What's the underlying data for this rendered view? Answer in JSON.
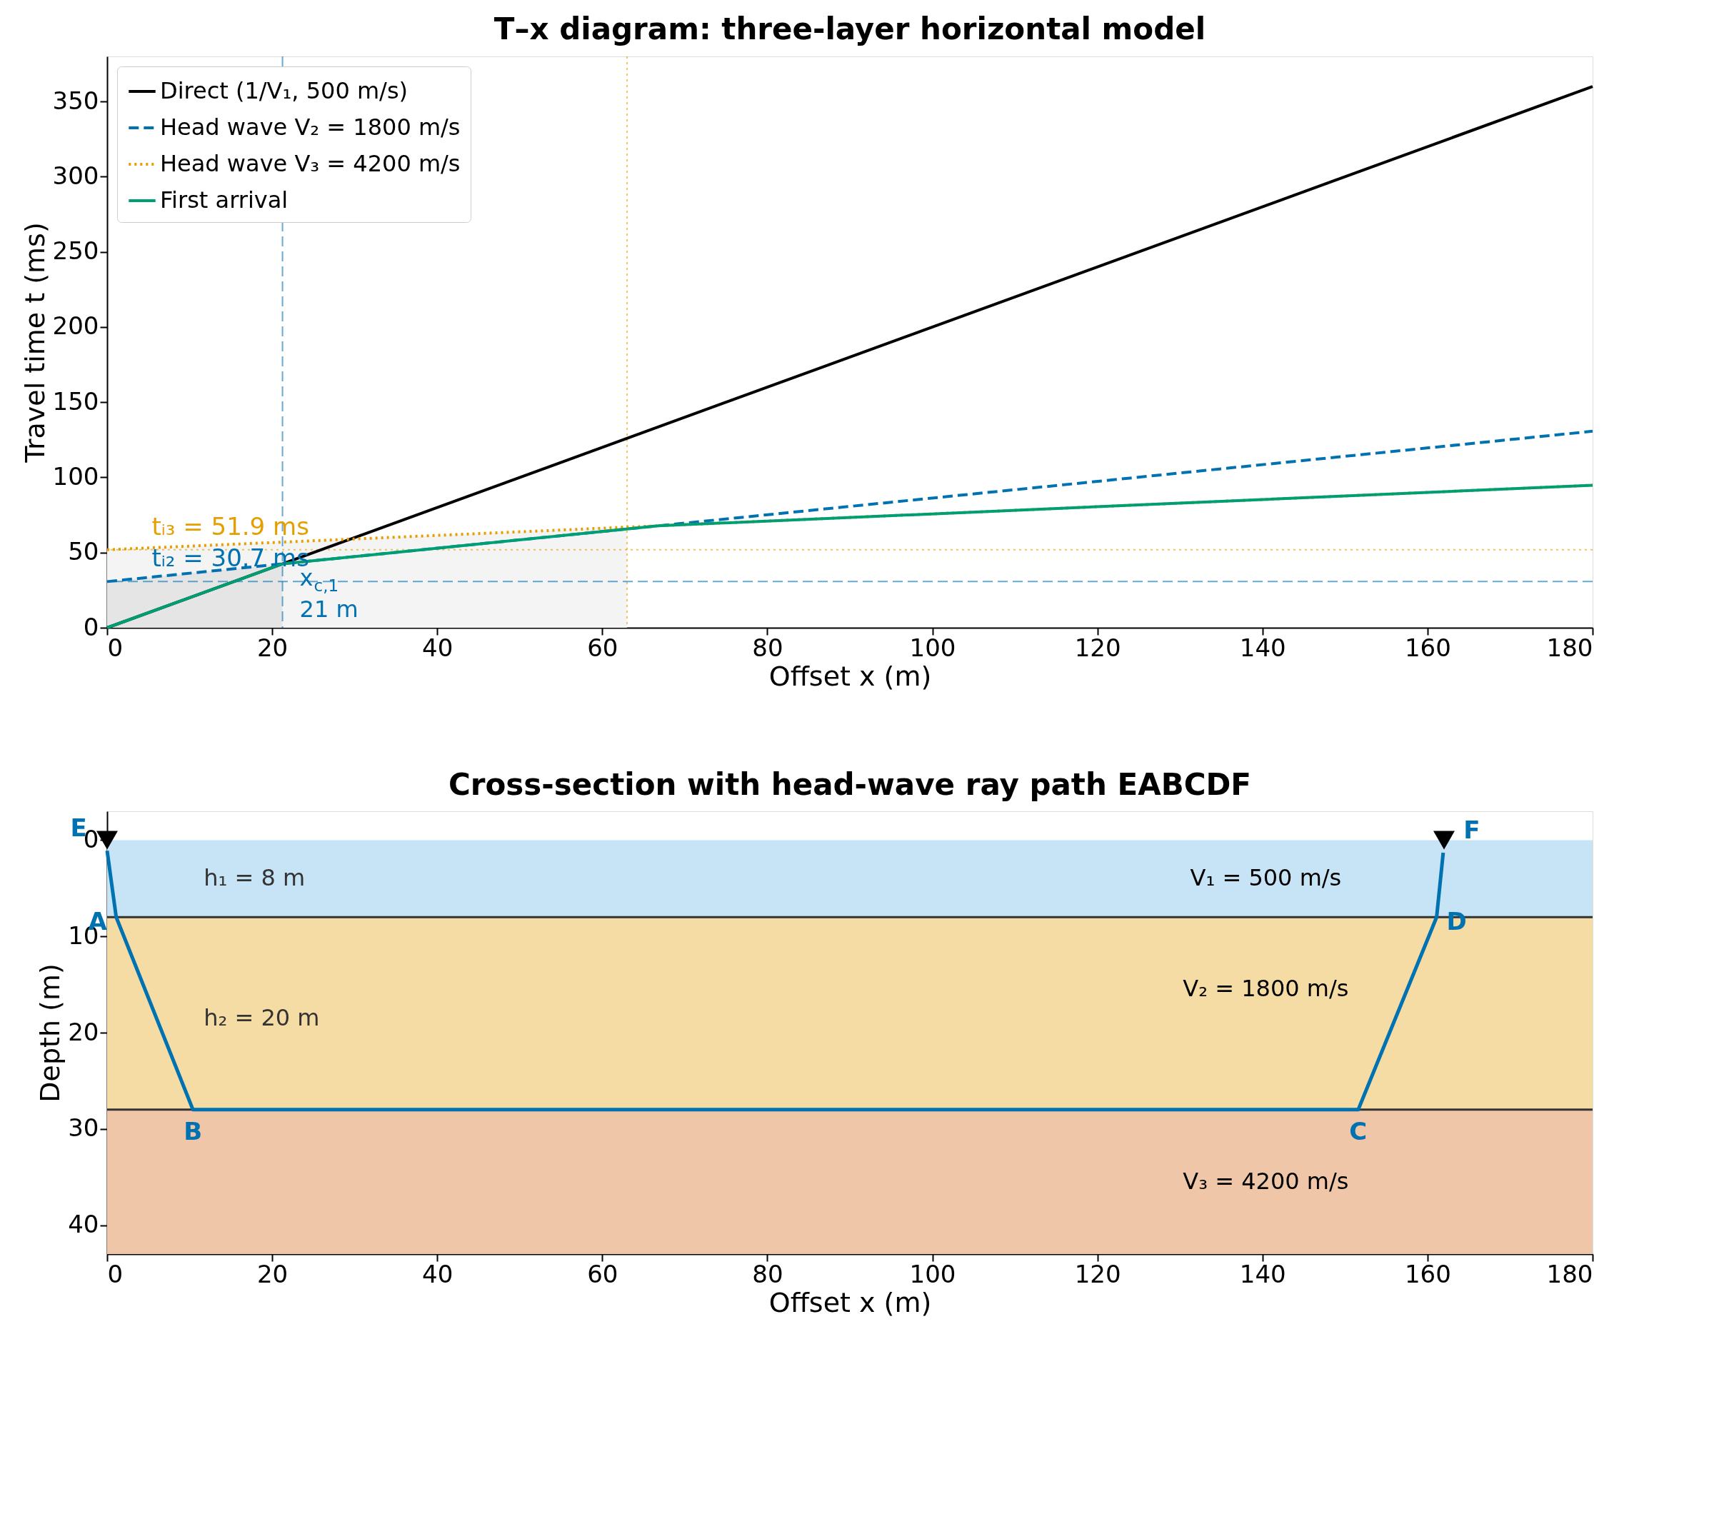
{
  "chart_data": [
    {
      "type": "line",
      "title": "T–x diagram: three-layer horizontal model",
      "xlabel": "Offset x (m)",
      "ylabel": "Travel time t (ms)",
      "xlim": [
        0,
        180
      ],
      "xticks": [
        0,
        20,
        40,
        60,
        80,
        100,
        120,
        140,
        160,
        180
      ],
      "ylim": [
        0,
        380
      ],
      "yticks": [
        0,
        50,
        100,
        150,
        200,
        250,
        300,
        350
      ],
      "grid": false,
      "legend": "top left",
      "series": [
        {
          "type": "area",
          "color": "#f4f4f4",
          "x": [
            0,
            63
          ],
          "values": [
            51.9,
            66.9
          ]
        },
        {
          "type": "area",
          "color": "#e5e5e5",
          "x": [
            0,
            21.25
          ],
          "values": [
            30.7,
            42.5
          ]
        },
        {
          "name": "Direct (1/V₁, 500 m/s)",
          "color": "#000000",
          "line_style": "solid",
          "x": [
            0,
            180
          ],
          "values": [
            0,
            360
          ]
        },
        {
          "name": "Head wave V₂ = 1800 m/s",
          "color": "#0072b2",
          "line_style": "dashed",
          "x": [
            0,
            180
          ],
          "values": [
            30.7,
            130.7
          ]
        },
        {
          "name": "Head wave V₃ = 4200 m/s",
          "color": "#e69f00",
          "line_style": "dotted",
          "x": [
            0,
            180
          ],
          "values": [
            51.9,
            94.8
          ]
        },
        {
          "name": "First arrival",
          "color": "#009e73",
          "line_style": "solid",
          "x": [
            0,
            21.25,
            66.8,
            180
          ],
          "values": [
            0,
            42.5,
            67.8,
            94.8
          ]
        }
      ],
      "ref_lines": [
        {
          "axis": "x",
          "value": 21.25,
          "label": "x$_{c,1}$\n21 m",
          "color": "#0072b2",
          "line_style": "dashed"
        },
        {
          "axis": "x",
          "value": 63,
          "color": "#e69f00",
          "line_style": "dotted"
        },
        {
          "axis": "y",
          "value": 30.7,
          "label": "tᵢ₂ = 30.7 ms",
          "color": "#0072b2",
          "line_style": "dashed"
        },
        {
          "axis": "y",
          "value": 51.9,
          "label": "tᵢ₃ = 51.9 ms",
          "color": "#e69f00",
          "line_style": "dotted"
        }
      ]
    },
    {
      "type": "line",
      "title": "Cross-section with head-wave ray path EABCDF",
      "xlabel": "Offset x (m)",
      "ylabel": "Depth (m)",
      "xlim": [
        0,
        180
      ],
      "xticks": [
        0,
        20,
        40,
        60,
        80,
        100,
        120,
        140,
        160,
        180
      ],
      "ylim": [
        43,
        -3
      ],
      "yticks": [
        0,
        10,
        20,
        30,
        40
      ],
      "grid": false,
      "legend": false,
      "bands": [
        {
          "axis": "y",
          "from": 0,
          "to": 8,
          "label": "V₁ = 500 m/s",
          "color": "#c6e4f5"
        },
        {
          "axis": "y",
          "from": 8,
          "to": 28,
          "label": "V₂ = 1800 m/s",
          "color": "#f5dca5"
        },
        {
          "axis": "y",
          "from": 28,
          "to": 43,
          "label": "V₃ = 4200 m/s",
          "color": "#f0c6a8"
        }
      ],
      "ref_lines": [
        {
          "axis": "y",
          "value": 8,
          "color": "#333333",
          "line_style": "solid"
        },
        {
          "axis": "y",
          "value": 28,
          "color": "#333333",
          "line_style": "solid"
        }
      ],
      "series": [
        {
          "color": "#0072b2",
          "line_style": "solid",
          "x": [
            0,
            1.1,
            10.4,
            151.6,
            161.1,
            161.9
          ],
          "values": [
            1.1,
            8,
            28,
            28,
            8,
            1.3
          ],
          "value_labels": [
            "E",
            "A",
            "B",
            "C",
            "D",
            "F"
          ]
        },
        {
          "type": "scatter",
          "color": "#000000",
          "marker": "triangle",
          "x": [
            0,
            162
          ],
          "values": [
            0,
            0
          ]
        }
      ],
      "annotations": [
        "h₁ = 8 m",
        "h₂ = 20 m"
      ]
    }
  ]
}
